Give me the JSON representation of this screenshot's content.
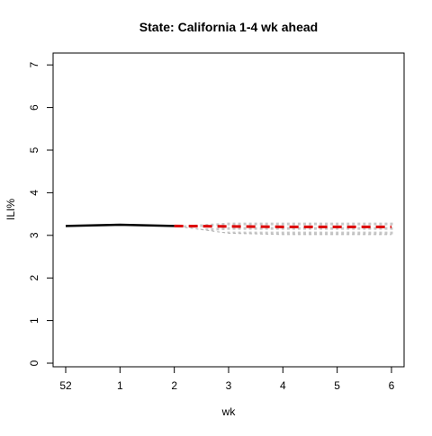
{
  "chart_data": {
    "type": "line",
    "title": "State: California 1-4 wk ahead",
    "xlabel": "wk",
    "ylabel": "ILI%",
    "ylim": [
      0,
      7
    ],
    "x_ticks": [
      "52",
      "1",
      "2",
      "3",
      "4",
      "5",
      "6"
    ],
    "y_ticks": [
      "0",
      "1",
      "2",
      "3",
      "4",
      "5",
      "6",
      "7"
    ],
    "observed": {
      "x": [
        "52",
        "1",
        "2"
      ],
      "y": [
        3.22,
        3.25,
        3.22
      ]
    },
    "forecast": {
      "x": [
        "2",
        "3",
        "4",
        "5",
        "6"
      ],
      "median": [
        3.22,
        3.21,
        3.2,
        3.2,
        3.2
      ],
      "lower": [
        3.22,
        3.05,
        3.02,
        3.02,
        3.02
      ],
      "upper": [
        3.22,
        3.3,
        3.3,
        3.3,
        3.3
      ]
    },
    "colors": {
      "observed": "#000000",
      "forecast": "#dd0000",
      "interval": "#c8c8c8"
    }
  }
}
